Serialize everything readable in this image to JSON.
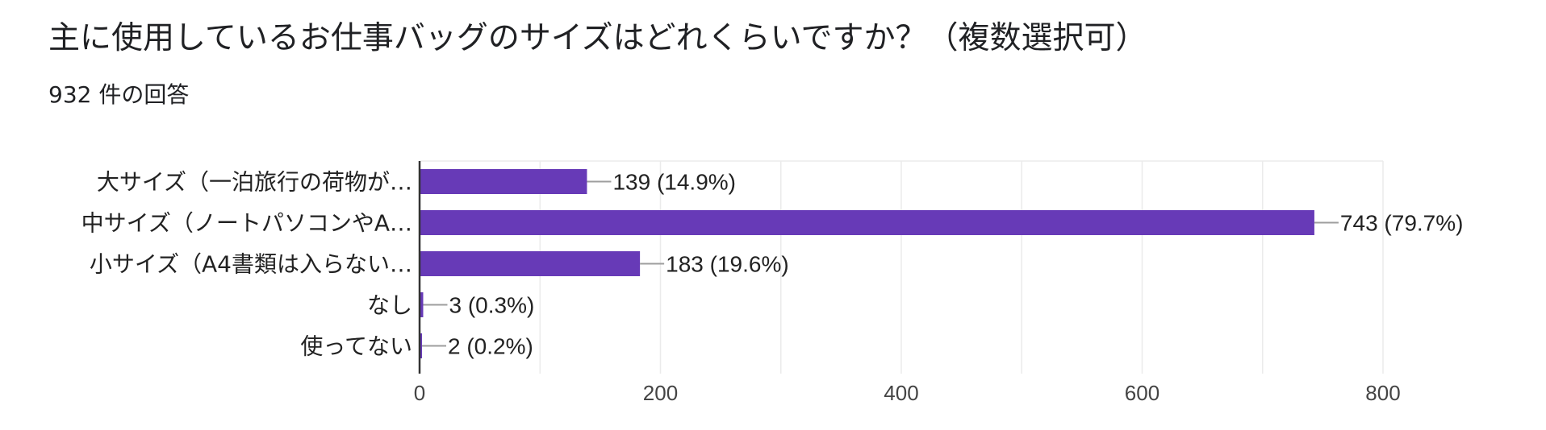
{
  "title": "主に使用しているお仕事バッグのサイズはどれくらいですか？（複数選択可）",
  "response_count": "932 件の回答",
  "colors": {
    "bar": "#673AB7",
    "grid": "#EBEBEB",
    "axis": "#333333",
    "leader": "#9E9E9E"
  },
  "chart_data": {
    "type": "bar",
    "orientation": "horizontal",
    "categories": [
      "大サイズ（一泊旅行の荷物が…",
      "中サイズ（ノートパソコンやA…",
      "小サイズ（A4書類は入らない…",
      "なし",
      "使ってない"
    ],
    "values": [
      139,
      743,
      183,
      3,
      2
    ],
    "data_labels": [
      "139 (14.9%)",
      "743 (79.7%)",
      "183 (19.6%)",
      "3 (0.3%)",
      "2 (0.2%)"
    ],
    "xlim": [
      0,
      800
    ],
    "xticks": [
      0,
      200,
      400,
      600,
      800
    ],
    "grid": true
  }
}
